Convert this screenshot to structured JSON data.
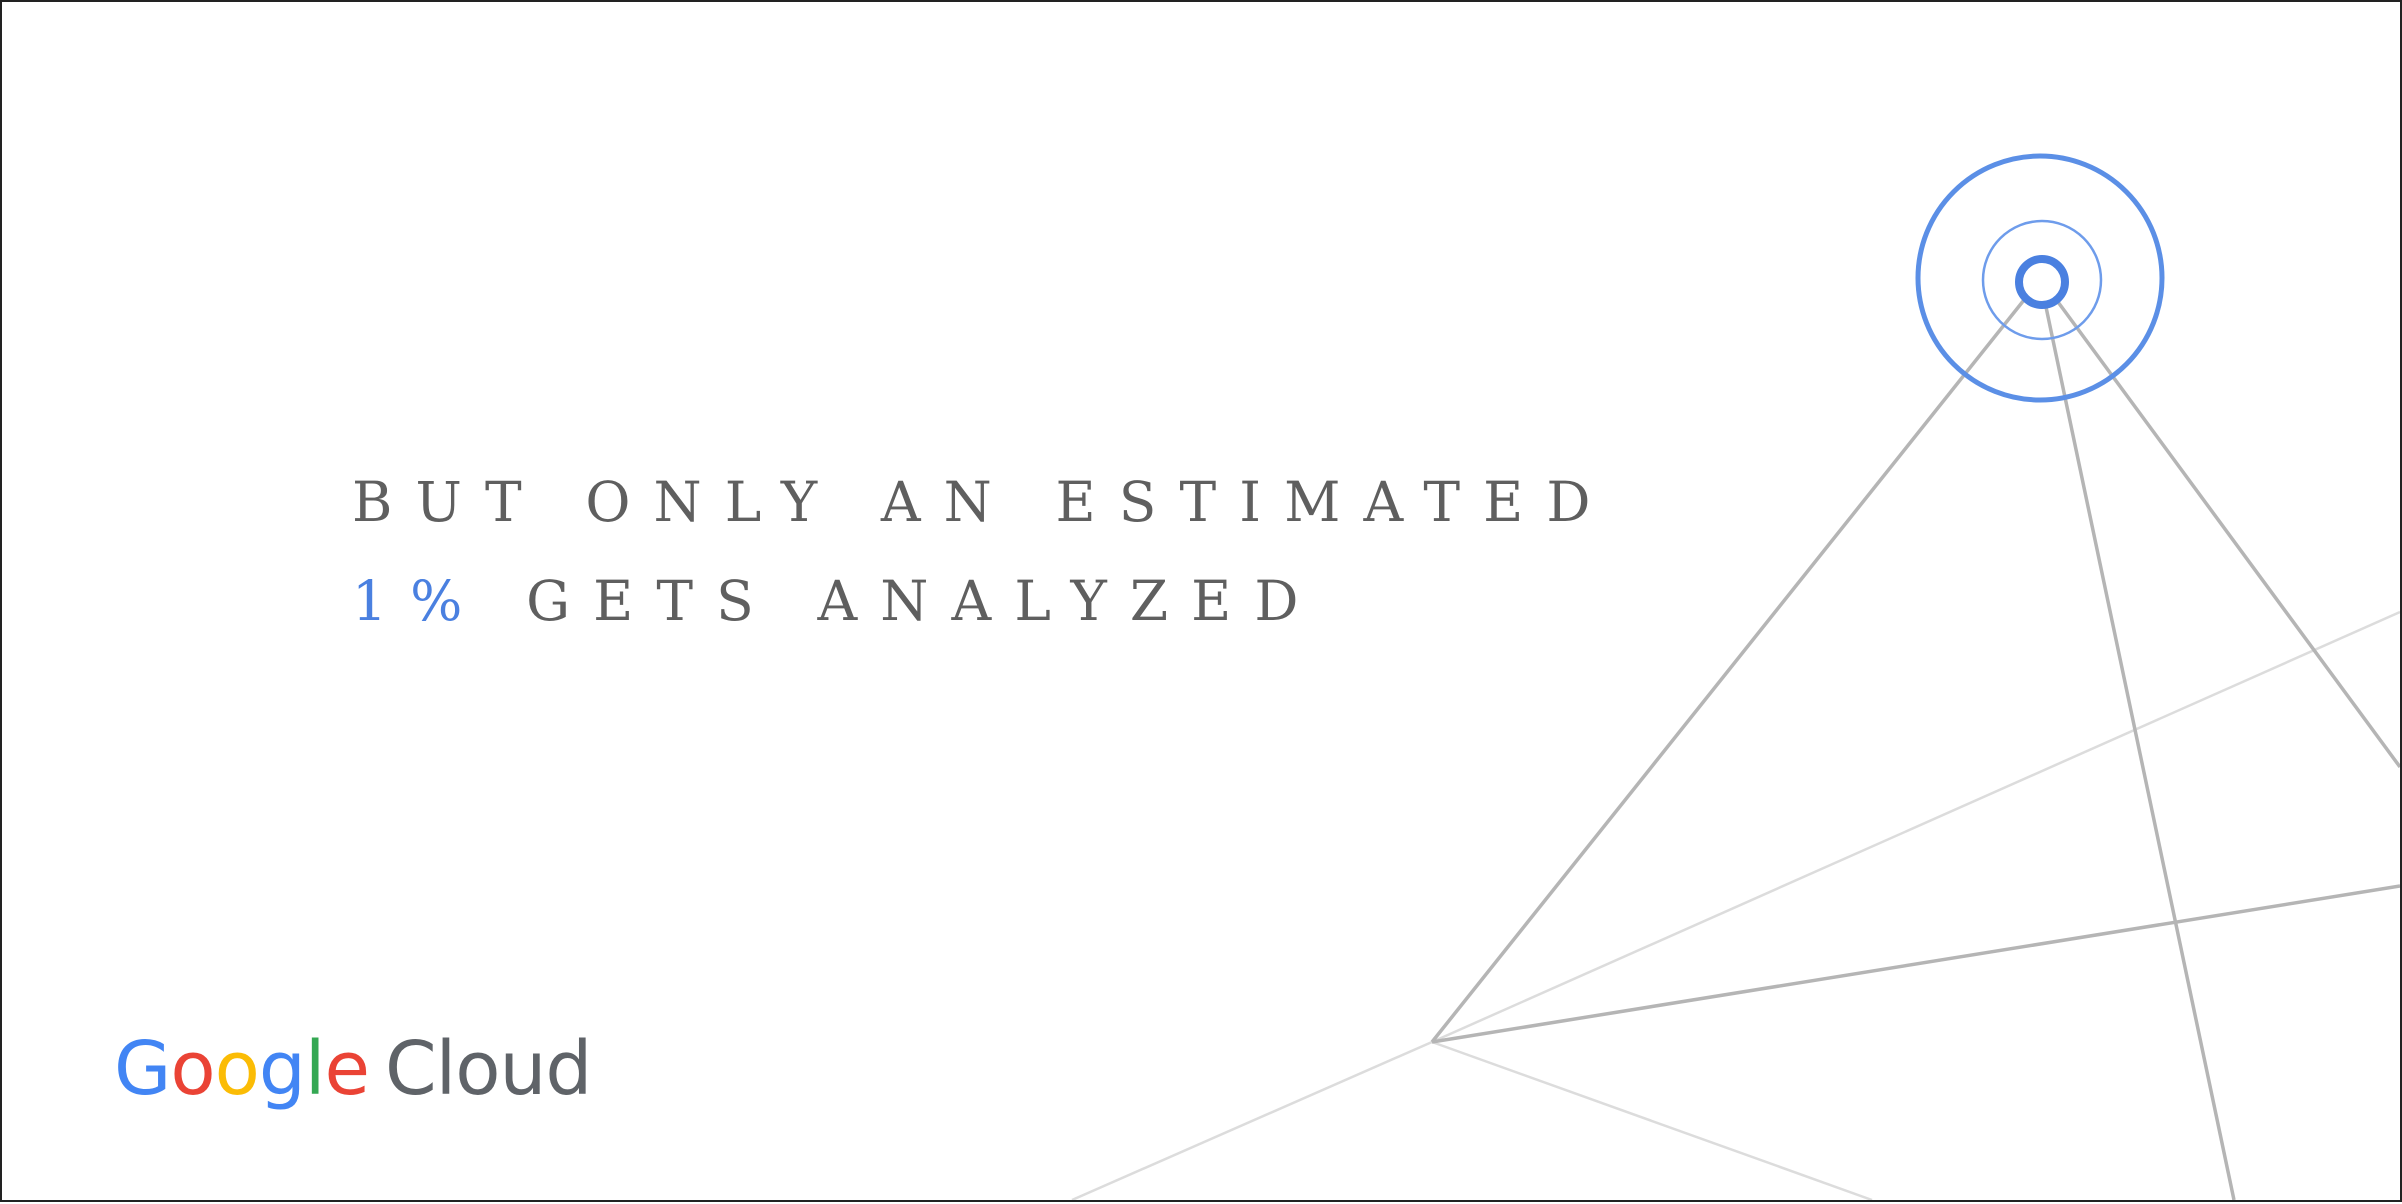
{
  "headline": {
    "line1": "BUT ONLY AN ESTIMATED",
    "line2_accent": "1%",
    "line2_rest": "GETS ANALYZED"
  },
  "logo": {
    "letters": [
      "G",
      "o",
      "o",
      "g",
      "l",
      "e"
    ],
    "word": "Cloud",
    "letter_colors": [
      "#4285f4",
      "#ea4335",
      "#fbbc05",
      "#4285f4",
      "#34a853",
      "#ea4335"
    ]
  },
  "colors": {
    "accent": "#4a80e0",
    "text": "#5f5f5f",
    "beacon": "#5b8fe6",
    "network_lines": "#b5b5b5"
  },
  "icons": [
    "beacon-icon"
  ]
}
